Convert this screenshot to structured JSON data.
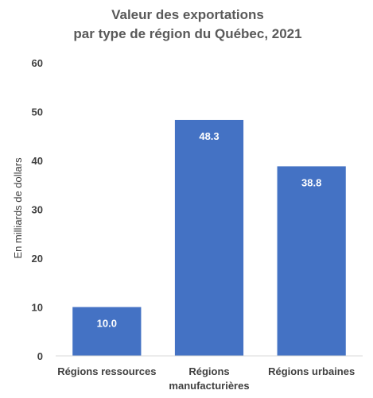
{
  "chart_data": {
    "type": "bar",
    "title_lines": [
      "Valeur des exportations",
      "par type de région du Québec, 2021"
    ],
    "ylabel": "En milliards de dollars",
    "xlabel": "",
    "categories": [
      [
        "Régions ressources"
      ],
      [
        "Régions",
        "manufacturières"
      ],
      [
        "Régions urbaines"
      ]
    ],
    "values": [
      10.0,
      48.3,
      38.8
    ],
    "data_labels": [
      "10.0",
      "48.3",
      "38.8"
    ],
    "ylim": [
      0,
      60
    ],
    "yticks": [
      0,
      10,
      20,
      30,
      40,
      50,
      60
    ],
    "grid": false,
    "legend": "none",
    "colors": {
      "bar": "#4472C4",
      "axis": "#D9D9D9",
      "text": "#404040",
      "title": "#595959"
    }
  }
}
